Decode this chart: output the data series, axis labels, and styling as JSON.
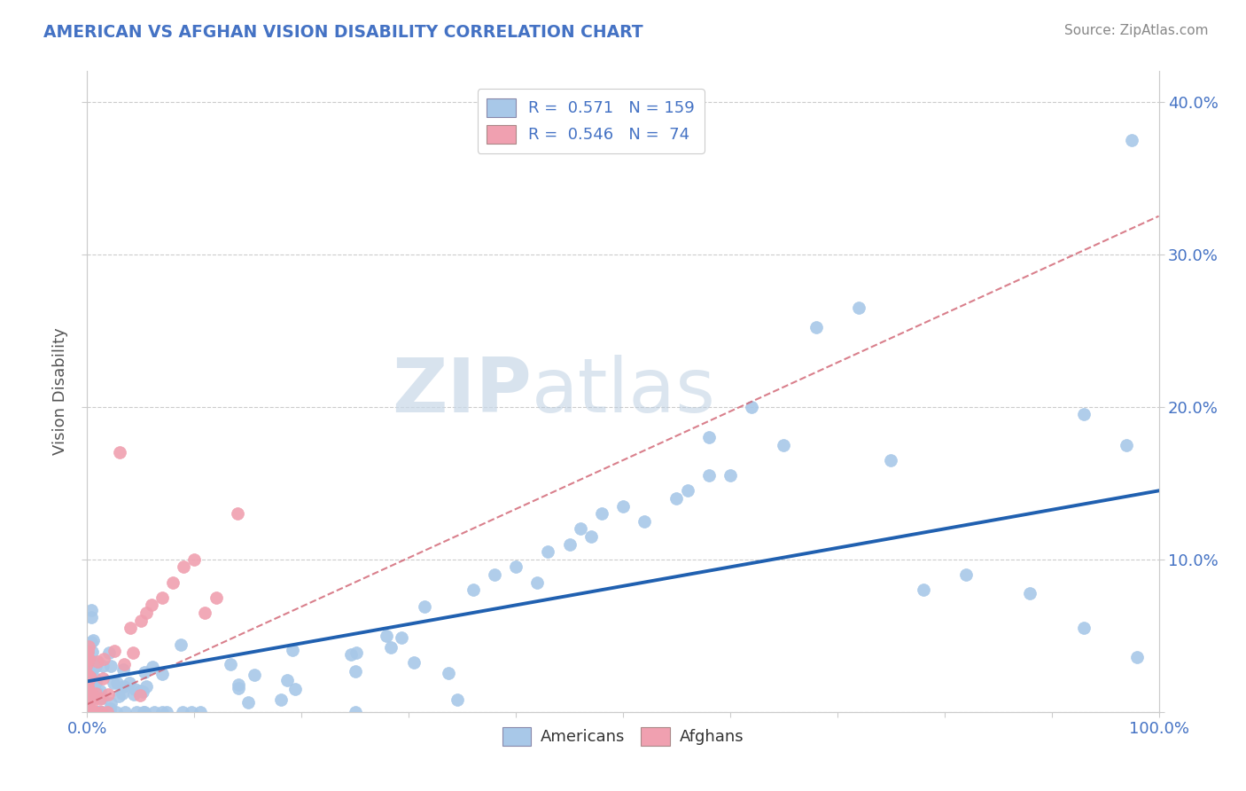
{
  "title": "AMERICAN VS AFGHAN VISION DISABILITY CORRELATION CHART",
  "source": "Source: ZipAtlas.com",
  "ylabel": "Vision Disability",
  "legend_americans": "Americans",
  "legend_afghans": "Afghans",
  "R_american": 0.571,
  "N_american": 159,
  "R_afghan": 0.546,
  "N_afghan": 74,
  "american_color": "#a8c8e8",
  "afghan_color": "#f0a0b0",
  "american_line_color": "#2060b0",
  "afghan_line_color": "#d06070",
  "watermark_zip": "ZIP",
  "watermark_atlas": "atlas",
  "background_color": "#ffffff",
  "grid_color": "#cccccc",
  "title_color": "#4472c4",
  "tick_color": "#4472c4",
  "source_color": "#888888",
  "legend_color": "#4472c4",
  "xlim": [
    0,
    1.0
  ],
  "ylim": [
    0,
    0.42
  ],
  "ytick_vals": [
    0.0,
    0.1,
    0.2,
    0.3,
    0.4
  ],
  "ytick_labels": [
    "",
    "10.0%",
    "20.0%",
    "30.0%",
    "40.0%"
  ]
}
